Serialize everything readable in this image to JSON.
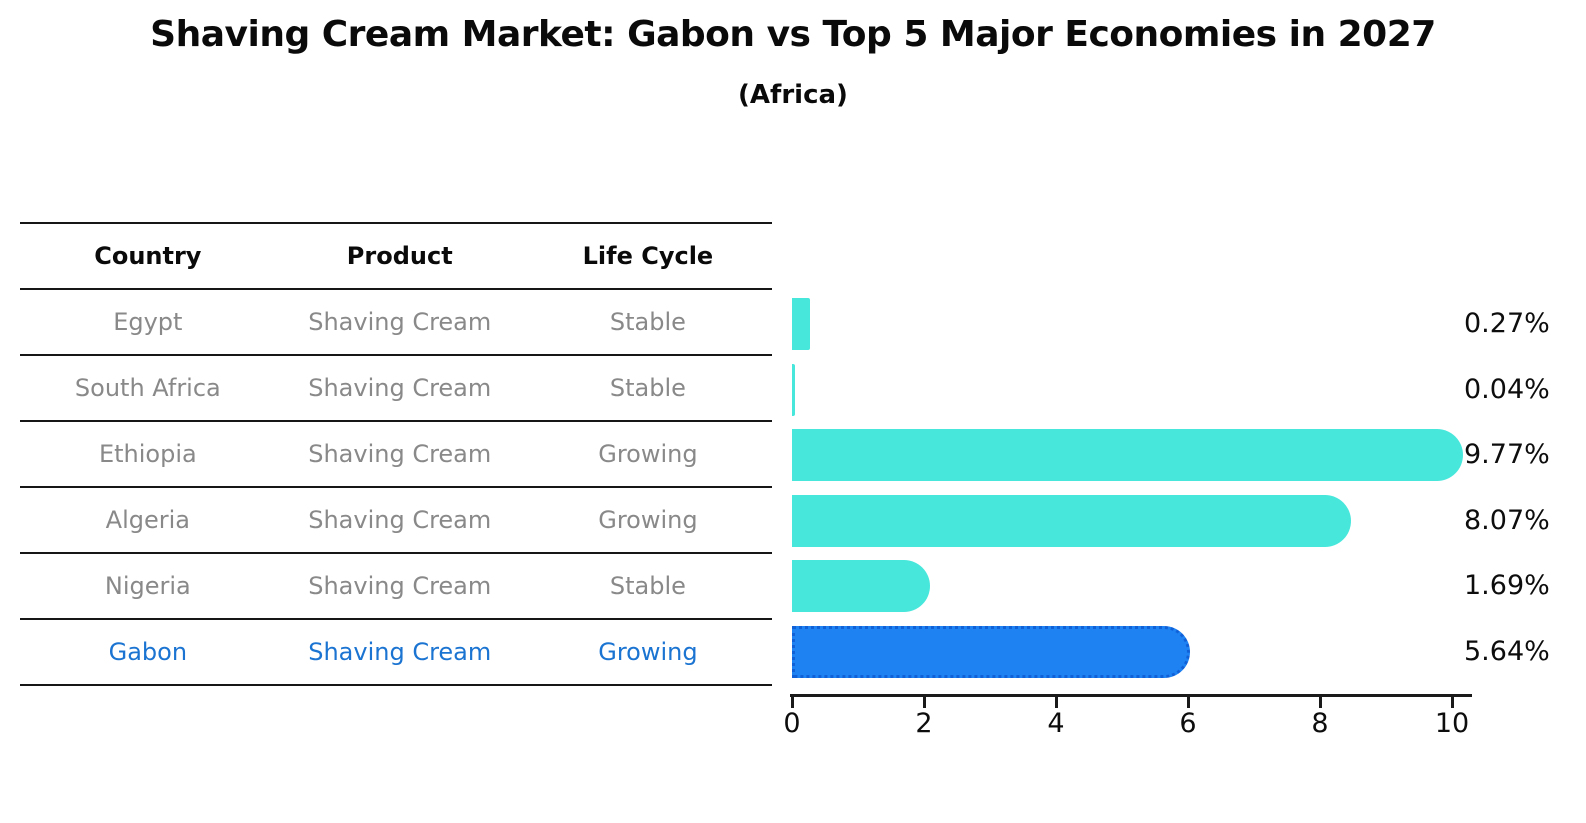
{
  "title": "Shaving Cream Market: Gabon vs Top 5 Major Economies in 2027",
  "subtitle": "(Africa)",
  "table": {
    "headers": [
      "Country",
      "Product",
      "Life Cycle"
    ],
    "rows": [
      {
        "country": "Egypt",
        "product": "Shaving Cream",
        "life_cycle": "Stable",
        "highlight": false
      },
      {
        "country": "South Africa",
        "product": "Shaving Cream",
        "life_cycle": "Stable",
        "highlight": false
      },
      {
        "country": "Ethiopia",
        "product": "Shaving Cream",
        "life_cycle": "Growing",
        "highlight": false
      },
      {
        "country": "Algeria",
        "product": "Shaving Cream",
        "life_cycle": "Growing",
        "highlight": false
      },
      {
        "country": "Nigeria",
        "product": "Shaving Cream",
        "life_cycle": "Stable",
        "highlight": false
      },
      {
        "country": "Gabon",
        "product": "Shaving Cream",
        "life_cycle": "Growing",
        "highlight": true
      }
    ]
  },
  "chart_data": {
    "type": "bar",
    "orientation": "horizontal",
    "title": "Shaving Cream Market: Gabon vs Top 5 Major Economies in 2027",
    "subtitle": "(Africa)",
    "categories": [
      "Egypt",
      "South Africa",
      "Ethiopia",
      "Algeria",
      "Nigeria",
      "Gabon"
    ],
    "values": [
      0.27,
      0.04,
      9.77,
      8.07,
      1.69,
      5.64
    ],
    "value_labels": [
      "0.27%",
      "0.04%",
      "9.77%",
      "8.07%",
      "1.69%",
      "5.64%"
    ],
    "xlim": [
      0,
      10
    ],
    "x_ticks": [
      0,
      2,
      4,
      6,
      8,
      10
    ],
    "x_tick_labels": [
      "0",
      "2",
      "4",
      "6",
      "8",
      "10"
    ],
    "grid": false,
    "legend": false,
    "bar_color": "#48E7DC",
    "highlight_index": 5,
    "highlight_color": "#1E82F2",
    "highlight_border_color": "#1060D8"
  },
  "colors": {
    "ink": "#111111",
    "table_text": "#898989",
    "highlight_text": "#1B74D1"
  }
}
